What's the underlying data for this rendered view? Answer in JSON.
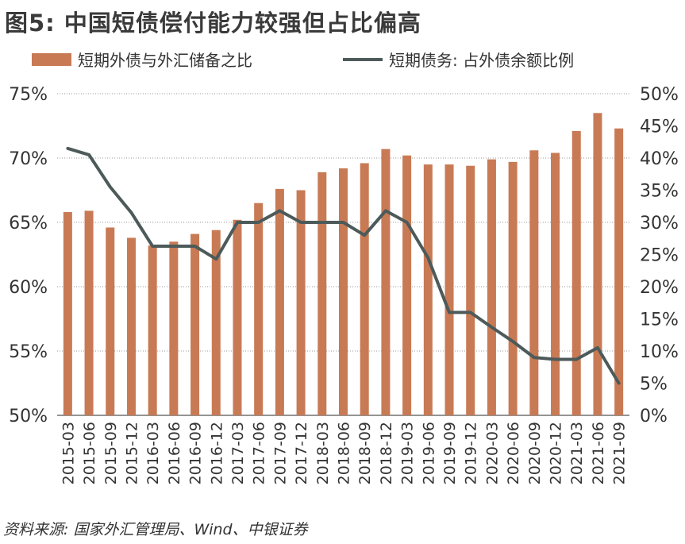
{
  "title": "图5: 中国短债偿付能力较强但占比偏高",
  "source": "资料来源: 国家外汇管理局、Wind、中银证券",
  "colors": {
    "bar": "#c87a55",
    "line": "#4d5a5a",
    "grid": "#9a9a9a"
  },
  "chart_data": {
    "type": "bar",
    "categories": [
      "2015-03",
      "2015-06",
      "2015-09",
      "2015-12",
      "2016-03",
      "2016-06",
      "2016-09",
      "2016-12",
      "2017-03",
      "2017-06",
      "2017-09",
      "2017-12",
      "2018-03",
      "2018-06",
      "2018-09",
      "2018-12",
      "2019-03",
      "2019-06",
      "2019-09",
      "2019-12",
      "2020-03",
      "2020-06",
      "2020-09",
      "2020-12",
      "2021-03",
      "2021-06",
      "2021-09"
    ],
    "series": [
      {
        "name": "短期外债与外汇储备之比",
        "type": "bar",
        "axis": "left",
        "values": [
          65.8,
          65.9,
          64.6,
          63.8,
          63.2,
          63.5,
          64.1,
          64.4,
          65.2,
          66.5,
          67.6,
          67.5,
          68.9,
          69.2,
          69.6,
          70.7,
          70.2,
          69.5,
          69.5,
          69.4,
          69.9,
          69.7,
          70.6,
          70.4,
          72.1,
          73.5,
          72.3
        ]
      },
      {
        "name": "短期债务: 占外债余额比例",
        "type": "line",
        "axis": "right",
        "values": [
          41.5,
          40.5,
          35.5,
          31.5,
          26.3,
          26.3,
          26.3,
          24.3,
          30.0,
          30.0,
          31.8,
          30.0,
          30.0,
          30.0,
          28.0,
          31.8,
          30.0,
          24.5,
          16.0,
          16.0,
          13.7,
          11.5,
          9.0,
          8.7,
          8.7,
          10.5,
          5.0
        ]
      }
    ],
    "left_axis": {
      "ylim": [
        50,
        75
      ],
      "ticks": [
        "50%",
        "55%",
        "60%",
        "65%",
        "70%",
        "75%"
      ],
      "tick_values": [
        50,
        55,
        60,
        65,
        70,
        75
      ]
    },
    "right_axis": {
      "ylim": [
        0,
        50
      ],
      "ticks": [
        "0%",
        "5%",
        "10%",
        "15%",
        "20%",
        "25%",
        "30%",
        "35%",
        "40%",
        "45%",
        "50%"
      ],
      "tick_values": [
        0,
        5,
        10,
        15,
        20,
        25,
        30,
        35,
        40,
        45,
        50
      ]
    },
    "grid": true,
    "legend": "top"
  }
}
